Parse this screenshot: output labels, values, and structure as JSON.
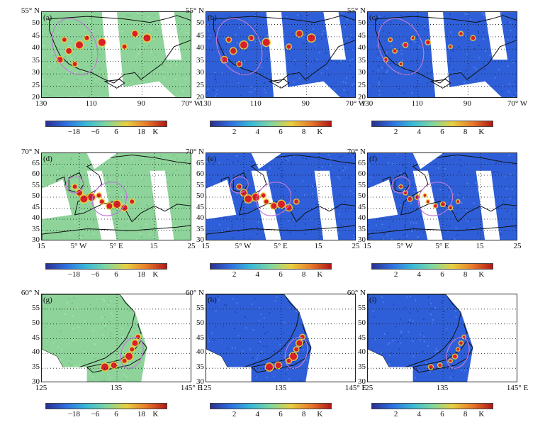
{
  "rows": [
    {
      "region": "usa",
      "y_ticks": [
        "55° N",
        "50",
        "45",
        "40",
        "35",
        "30",
        "25",
        "20"
      ],
      "x_ticks": [
        "130",
        "110",
        "90",
        "70° W"
      ],
      "panels": [
        {
          "label": "(a)",
          "kind": "diff"
        },
        {
          "label": "(b)",
          "kind": "pos"
        },
        {
          "label": "(c)",
          "kind": "pos"
        }
      ]
    },
    {
      "region": "europe",
      "y_ticks": [
        "70° N",
        "65",
        "60",
        "55",
        "50",
        "45",
        "40",
        "35",
        "30"
      ],
      "x_ticks": [
        "15",
        "5° W",
        "5° E",
        "15",
        "25"
      ],
      "panels": [
        {
          "label": "(d)",
          "kind": "diff"
        },
        {
          "label": "(e)",
          "kind": "pos"
        },
        {
          "label": "(f)",
          "kind": "pos"
        }
      ]
    },
    {
      "region": "eastasia",
      "y_ticks": [
        "60° N",
        "55",
        "50",
        "45",
        "40",
        "35",
        "30"
      ],
      "x_ticks": [
        "125",
        "135",
        "145° E"
      ],
      "panels": [
        {
          "label": "(g)",
          "kind": "diff"
        },
        {
          "label": "(h)",
          "kind": "pos"
        },
        {
          "label": "(i)",
          "kind": "pos"
        }
      ]
    }
  ],
  "colorbars": {
    "diff": {
      "labels": [
        "−18",
        "−6",
        "6",
        "18"
      ],
      "unit": "K"
    },
    "pos": {
      "labels": [
        "2",
        "4",
        "6",
        "8"
      ],
      "unit": "K"
    }
  },
  "colors": {
    "ocean_blue": "#2f5fd8",
    "land_green": "#8ed49a",
    "swath_gap": "#ffffff",
    "hotspot_red": "#d8202a",
    "hotspot_yellow": "#f3d23a",
    "ellipse": "#c07bd6"
  }
}
